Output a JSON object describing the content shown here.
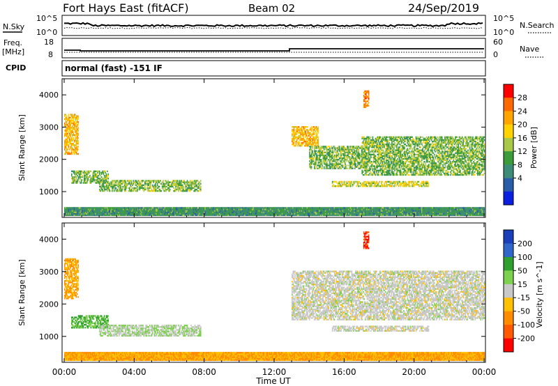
{
  "header": {
    "station": "Fort Hays East (fitACF)",
    "beam": "Beam 02",
    "date": "24/Sep/2019"
  },
  "noise_panel": {
    "left_label": "N.Sky",
    "right_label": "N.Search",
    "left_ticks": [
      "10^5",
      "10^0"
    ],
    "right_ticks": [
      "10^5",
      "10^0"
    ]
  },
  "freq_panel": {
    "left_label_1": "Freq.",
    "left_label_2": "[MHz]",
    "right_label": "Nave",
    "left_ticks": [
      "18",
      "8"
    ],
    "right_ticks": [
      "60",
      "0"
    ]
  },
  "cpid_panel": {
    "label": "CPID",
    "text": "normal (fast) -151 IF"
  },
  "power_colorbar": {
    "title": "Power [dB]",
    "ticks": [
      "28",
      "24",
      "20",
      "16",
      "12",
      "8",
      "4"
    ],
    "colors": [
      "#ff0000",
      "#ff6a00",
      "#ffa500",
      "#ffd200",
      "#a8c84a",
      "#3c9c3c",
      "#3c8c78",
      "#2b5ca8",
      "#0b1fe0"
    ]
  },
  "velocity_colorbar": {
    "title": "Velocity [m s^-1]",
    "ticks": [
      "200",
      "100",
      "50",
      "15",
      "-15",
      "-50",
      "-100",
      "-200"
    ],
    "colors": [
      "#1a3fb8",
      "#2f66c8",
      "#2fa02f",
      "#7ed04f",
      "#c8c8c8",
      "#ffc000",
      "#ff8c00",
      "#ff5a00",
      "#ff0000"
    ]
  },
  "chart_data": [
    {
      "type": "heatmap",
      "name": "power",
      "ylabel": "Slant Range [km]",
      "yticks": [
        "1000",
        "2000",
        "3000",
        "4000"
      ],
      "ylim": [
        200,
        4500
      ],
      "xlim": [
        0,
        24
      ],
      "features": [
        {
          "t0": 0.0,
          "t1": 0.8,
          "r0": 2150,
          "r1": 3400,
          "level": 20
        },
        {
          "t0": 0.4,
          "t1": 2.5,
          "r0": 1250,
          "r1": 1650,
          "level": 12
        },
        {
          "t0": 2.0,
          "t1": 7.8,
          "r0": 1000,
          "r1": 1350,
          "level": 12
        },
        {
          "t0": 13.0,
          "t1": 14.5,
          "r0": 2400,
          "r1": 3000,
          "level": 20
        },
        {
          "t0": 14.0,
          "t1": 17.0,
          "r0": 1700,
          "r1": 2400,
          "level": 12
        },
        {
          "t0": 17.0,
          "t1": 24.0,
          "r0": 1500,
          "r1": 2700,
          "level": 12
        },
        {
          "t0": 15.3,
          "t1": 20.8,
          "r0": 1150,
          "r1": 1320,
          "level": 16
        },
        {
          "t0": 17.1,
          "t1": 17.4,
          "r0": 3600,
          "r1": 4100,
          "level": 24
        },
        {
          "t0": 0.0,
          "t1": 24.0,
          "r0": 250,
          "r1": 500,
          "level": 8
        }
      ]
    },
    {
      "type": "heatmap",
      "name": "velocity",
      "ylabel": "Slant Range [km]",
      "yticks": [
        "1000",
        "2000",
        "3000",
        "4000"
      ],
      "ylim": [
        200,
        4500
      ],
      "xlim": [
        0,
        24
      ],
      "features": [
        {
          "t0": 0.0,
          "t1": 0.8,
          "r0": 2150,
          "r1": 3400,
          "level": -50
        },
        {
          "t0": 0.4,
          "t1": 2.5,
          "r0": 1250,
          "r1": 1650,
          "level": 50
        },
        {
          "t0": 2.0,
          "t1": 7.8,
          "r0": 1000,
          "r1": 1350,
          "level": 15
        },
        {
          "t0": 13.0,
          "t1": 24.0,
          "r0": 1500,
          "r1": 3000,
          "level": 0
        },
        {
          "t0": 15.3,
          "t1": 20.8,
          "r0": 1150,
          "r1": 1320,
          "level": 0
        },
        {
          "t0": 17.1,
          "t1": 17.4,
          "r0": 3700,
          "r1": 4200,
          "level": -200
        },
        {
          "t0": 0.0,
          "t1": 24.0,
          "r0": 250,
          "r1": 500,
          "level": -50
        }
      ]
    }
  ],
  "x_axis": {
    "ticks": [
      "00:00",
      "04:00",
      "08:00",
      "12:00",
      "16:00",
      "20:00",
      "00:00"
    ],
    "label": "Time UT"
  }
}
